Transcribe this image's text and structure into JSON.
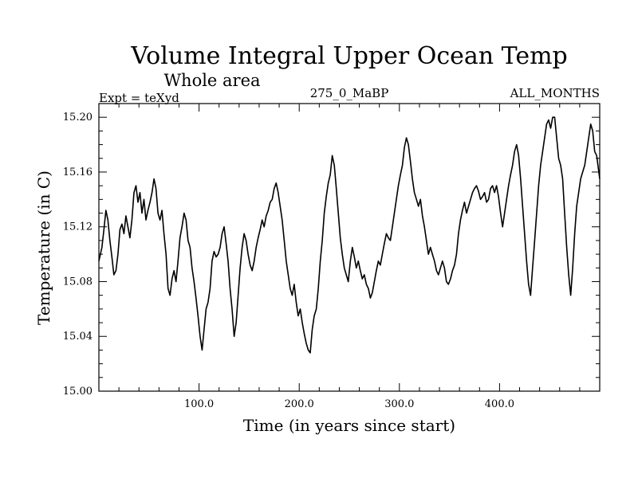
{
  "chart_data": {
    "type": "line",
    "title": "Volume Integral Upper Ocean Temp",
    "subtitle": "Whole area",
    "header_left": "Expt = teXyd",
    "header_center": "275_0_MaBP",
    "header_right": "ALL_MONTHS",
    "xlabel": "Time (in years since start)",
    "ylabel": "Temperature (in C)",
    "xlim": [
      0,
      500
    ],
    "ylim": [
      15.0,
      15.21
    ],
    "xticks": [
      100,
      200,
      300,
      400
    ],
    "xtick_labels": [
      "100.0",
      "200.0",
      "300.0",
      "400.0"
    ],
    "yticks": [
      15.0,
      15.04,
      15.08,
      15.12,
      15.16,
      15.2
    ],
    "ytick_labels": [
      "15.00",
      "15.04",
      "15.08",
      "15.12",
      "15.16",
      "15.20"
    ],
    "grid": false,
    "series": [
      {
        "points": [
          [
            0,
            15.095
          ],
          [
            3,
            15.105
          ],
          [
            5,
            15.118
          ],
          [
            7,
            15.132
          ],
          [
            9,
            15.125
          ],
          [
            11,
            15.11
          ],
          [
            13,
            15.098
          ],
          [
            15,
            15.085
          ],
          [
            17,
            15.088
          ],
          [
            19,
            15.1
          ],
          [
            21,
            15.118
          ],
          [
            23,
            15.122
          ],
          [
            25,
            15.115
          ],
          [
            27,
            15.128
          ],
          [
            29,
            15.12
          ],
          [
            31,
            15.112
          ],
          [
            33,
            15.125
          ],
          [
            35,
            15.145
          ],
          [
            37,
            15.15
          ],
          [
            39,
            15.138
          ],
          [
            41,
            15.145
          ],
          [
            43,
            15.13
          ],
          [
            45,
            15.14
          ],
          [
            47,
            15.125
          ],
          [
            49,
            15.132
          ],
          [
            51,
            15.138
          ],
          [
            53,
            15.145
          ],
          [
            55,
            15.155
          ],
          [
            57,
            15.148
          ],
          [
            59,
            15.13
          ],
          [
            61,
            15.125
          ],
          [
            63,
            15.132
          ],
          [
            65,
            15.115
          ],
          [
            67,
            15.1
          ],
          [
            69,
            15.075
          ],
          [
            71,
            15.07
          ],
          [
            73,
            15.082
          ],
          [
            75,
            15.088
          ],
          [
            77,
            15.08
          ],
          [
            79,
            15.095
          ],
          [
            81,
            15.112
          ],
          [
            83,
            15.12
          ],
          [
            85,
            15.13
          ],
          [
            87,
            15.125
          ],
          [
            89,
            15.11
          ],
          [
            91,
            15.105
          ],
          [
            93,
            15.09
          ],
          [
            95,
            15.08
          ],
          [
            97,
            15.068
          ],
          [
            99,
            15.055
          ],
          [
            101,
            15.04
          ],
          [
            103,
            15.03
          ],
          [
            105,
            15.045
          ],
          [
            107,
            15.06
          ],
          [
            109,
            15.065
          ],
          [
            111,
            15.075
          ],
          [
            113,
            15.095
          ],
          [
            115,
            15.102
          ],
          [
            117,
            15.098
          ],
          [
            119,
            15.1
          ],
          [
            121,
            15.105
          ],
          [
            123,
            15.115
          ],
          [
            125,
            15.12
          ],
          [
            127,
            15.108
          ],
          [
            129,
            15.095
          ],
          [
            131,
            15.075
          ],
          [
            133,
            15.06
          ],
          [
            135,
            15.04
          ],
          [
            137,
            15.05
          ],
          [
            139,
            15.07
          ],
          [
            141,
            15.09
          ],
          [
            143,
            15.105
          ],
          [
            145,
            15.115
          ],
          [
            147,
            15.11
          ],
          [
            149,
            15.1
          ],
          [
            151,
            15.092
          ],
          [
            153,
            15.088
          ],
          [
            155,
            15.095
          ],
          [
            157,
            15.105
          ],
          [
            159,
            15.112
          ],
          [
            161,
            15.118
          ],
          [
            163,
            15.125
          ],
          [
            165,
            15.12
          ],
          [
            167,
            15.128
          ],
          [
            169,
            15.132
          ],
          [
            171,
            15.138
          ],
          [
            173,
            15.14
          ],
          [
            175,
            15.148
          ],
          [
            177,
            15.152
          ],
          [
            179,
            15.145
          ],
          [
            181,
            15.135
          ],
          [
            183,
            15.125
          ],
          [
            185,
            15.11
          ],
          [
            187,
            15.095
          ],
          [
            189,
            15.085
          ],
          [
            191,
            15.075
          ],
          [
            193,
            15.07
          ],
          [
            195,
            15.078
          ],
          [
            197,
            15.065
          ],
          [
            199,
            15.055
          ],
          [
            201,
            15.06
          ],
          [
            203,
            15.05
          ],
          [
            205,
            15.042
          ],
          [
            207,
            15.035
          ],
          [
            209,
            15.03
          ],
          [
            211,
            15.028
          ],
          [
            213,
            15.045
          ],
          [
            215,
            15.055
          ],
          [
            217,
            15.06
          ],
          [
            219,
            15.075
          ],
          [
            221,
            15.095
          ],
          [
            223,
            15.11
          ],
          [
            225,
            15.13
          ],
          [
            227,
            15.142
          ],
          [
            229,
            15.152
          ],
          [
            231,
            15.158
          ],
          [
            233,
            15.172
          ],
          [
            235,
            15.165
          ],
          [
            237,
            15.148
          ],
          [
            239,
            15.13
          ],
          [
            241,
            15.112
          ],
          [
            243,
            15.1
          ],
          [
            245,
            15.09
          ],
          [
            247,
            15.085
          ],
          [
            249,
            15.08
          ],
          [
            251,
            15.095
          ],
          [
            253,
            15.105
          ],
          [
            255,
            15.098
          ],
          [
            257,
            15.09
          ],
          [
            259,
            15.095
          ],
          [
            261,
            15.088
          ],
          [
            263,
            15.082
          ],
          [
            265,
            15.085
          ],
          [
            267,
            15.078
          ],
          [
            269,
            15.075
          ],
          [
            271,
            15.068
          ],
          [
            273,
            15.072
          ],
          [
            275,
            15.08
          ],
          [
            277,
            15.088
          ],
          [
            279,
            15.095
          ],
          [
            281,
            15.092
          ],
          [
            283,
            15.1
          ],
          [
            285,
            15.108
          ],
          [
            287,
            15.115
          ],
          [
            289,
            15.112
          ],
          [
            291,
            15.11
          ],
          [
            293,
            15.12
          ],
          [
            295,
            15.13
          ],
          [
            297,
            15.14
          ],
          [
            299,
            15.15
          ],
          [
            301,
            15.158
          ],
          [
            303,
            15.165
          ],
          [
            305,
            15.178
          ],
          [
            307,
            15.185
          ],
          [
            309,
            15.18
          ],
          [
            311,
            15.168
          ],
          [
            313,
            15.155
          ],
          [
            315,
            15.145
          ],
          [
            317,
            15.14
          ],
          [
            319,
            15.135
          ],
          [
            321,
            15.14
          ],
          [
            323,
            15.128
          ],
          [
            325,
            15.12
          ],
          [
            327,
            15.11
          ],
          [
            329,
            15.1
          ],
          [
            331,
            15.105
          ],
          [
            333,
            15.1
          ],
          [
            335,
            15.095
          ],
          [
            337,
            15.088
          ],
          [
            339,
            15.085
          ],
          [
            341,
            15.09
          ],
          [
            343,
            15.095
          ],
          [
            345,
            15.09
          ],
          [
            347,
            15.08
          ],
          [
            349,
            15.078
          ],
          [
            351,
            15.082
          ],
          [
            353,
            15.088
          ],
          [
            355,
            15.092
          ],
          [
            357,
            15.1
          ],
          [
            359,
            15.115
          ],
          [
            361,
            15.125
          ],
          [
            363,
            15.132
          ],
          [
            365,
            15.138
          ],
          [
            367,
            15.13
          ],
          [
            369,
            15.135
          ],
          [
            371,
            15.14
          ],
          [
            373,
            15.145
          ],
          [
            375,
            15.148
          ],
          [
            377,
            15.15
          ],
          [
            379,
            15.146
          ],
          [
            381,
            15.14
          ],
          [
            383,
            15.142
          ],
          [
            385,
            15.145
          ],
          [
            387,
            15.138
          ],
          [
            389,
            15.14
          ],
          [
            391,
            15.148
          ],
          [
            393,
            15.15
          ],
          [
            395,
            15.145
          ],
          [
            397,
            15.15
          ],
          [
            399,
            15.142
          ],
          [
            401,
            15.13
          ],
          [
            403,
            15.12
          ],
          [
            405,
            15.13
          ],
          [
            407,
            15.14
          ],
          [
            409,
            15.15
          ],
          [
            411,
            15.158
          ],
          [
            413,
            15.165
          ],
          [
            415,
            15.175
          ],
          [
            417,
            15.18
          ],
          [
            419,
            15.172
          ],
          [
            421,
            15.155
          ],
          [
            423,
            15.135
          ],
          [
            425,
            15.115
          ],
          [
            427,
            15.095
          ],
          [
            429,
            15.078
          ],
          [
            431,
            15.07
          ],
          [
            433,
            15.09
          ],
          [
            435,
            15.11
          ],
          [
            437,
            15.13
          ],
          [
            439,
            15.15
          ],
          [
            441,
            15.165
          ],
          [
            443,
            15.175
          ],
          [
            445,
            15.185
          ],
          [
            447,
            15.195
          ],
          [
            449,
            15.198
          ],
          [
            451,
            15.192
          ],
          [
            453,
            15.2
          ],
          [
            455,
            15.2
          ],
          [
            457,
            15.185
          ],
          [
            459,
            15.17
          ],
          [
            461,
            15.165
          ],
          [
            463,
            15.155
          ],
          [
            465,
            15.13
          ],
          [
            467,
            15.105
          ],
          [
            469,
            15.085
          ],
          [
            471,
            15.07
          ],
          [
            473,
            15.09
          ],
          [
            475,
            15.115
          ],
          [
            477,
            15.135
          ],
          [
            479,
            15.145
          ],
          [
            481,
            15.155
          ],
          [
            483,
            15.16
          ],
          [
            485,
            15.165
          ],
          [
            487,
            15.175
          ],
          [
            489,
            15.185
          ],
          [
            491,
            15.195
          ],
          [
            493,
            15.19
          ],
          [
            495,
            15.175
          ],
          [
            497,
            15.172
          ],
          [
            500,
            15.155
          ]
        ]
      }
    ]
  }
}
